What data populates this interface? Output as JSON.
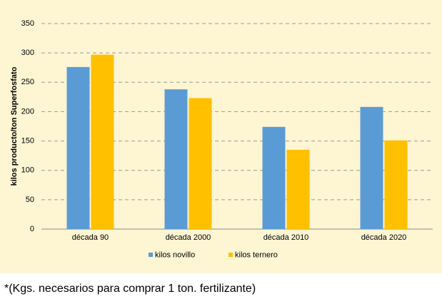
{
  "chart_data": {
    "type": "bar",
    "y_label": "kilos producto/ton Superfosfato",
    "categories": [
      "década 90",
      "década 2000",
      "década 2010",
      "década 2020"
    ],
    "series": [
      {
        "name": "kilos novillo",
        "color": "#5b9bd5",
        "values": [
          276,
          238,
          174,
          208
        ]
      },
      {
        "name": "kilos ternero",
        "color": "#ffc000",
        "values": [
          297,
          223,
          135,
          151
        ]
      }
    ],
    "ylim": [
      0,
      350
    ],
    "yticks": [
      0,
      50,
      100,
      150,
      200,
      250,
      300,
      350
    ],
    "grid": true,
    "footnote": "*(Kgs. necesarios para comprar 1 ton. fertilizante)"
  }
}
